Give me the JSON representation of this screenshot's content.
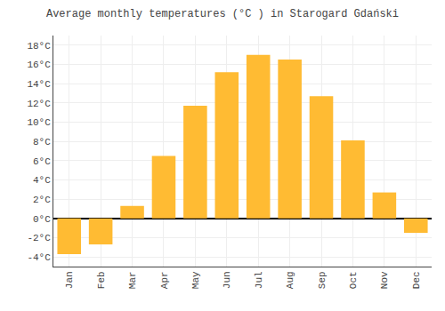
{
  "chart_data": {
    "type": "bar",
    "title": "Average monthly temperatures (°C ) in Starogard Gdański",
    "categories": [
      "Jan",
      "Feb",
      "Mar",
      "Apr",
      "May",
      "Jun",
      "Jul",
      "Aug",
      "Sep",
      "Oct",
      "Nov",
      "Dec"
    ],
    "values": [
      -3.7,
      -2.7,
      1.3,
      6.5,
      11.7,
      15.2,
      17.0,
      16.5,
      12.7,
      8.1,
      2.7,
      -1.5
    ],
    "color": "#FFBB33",
    "ylim": [
      -5,
      19
    ],
    "yticks": [
      {
        "value": -4,
        "label": "-4°C"
      },
      {
        "value": -2,
        "label": "-2°C"
      },
      {
        "value": 0,
        "label": "0°C"
      },
      {
        "value": 2,
        "label": "2°C"
      },
      {
        "value": 4,
        "label": "4°C"
      },
      {
        "value": 6,
        "label": "6°C"
      },
      {
        "value": 8,
        "label": "8°C"
      },
      {
        "value": 10,
        "label": "10°C"
      },
      {
        "value": 12,
        "label": "12°C"
      },
      {
        "value": 14,
        "label": "14°C"
      },
      {
        "value": 16,
        "label": "16°C"
      },
      {
        "value": 18,
        "label": "18°C"
      }
    ],
    "grid": true
  }
}
